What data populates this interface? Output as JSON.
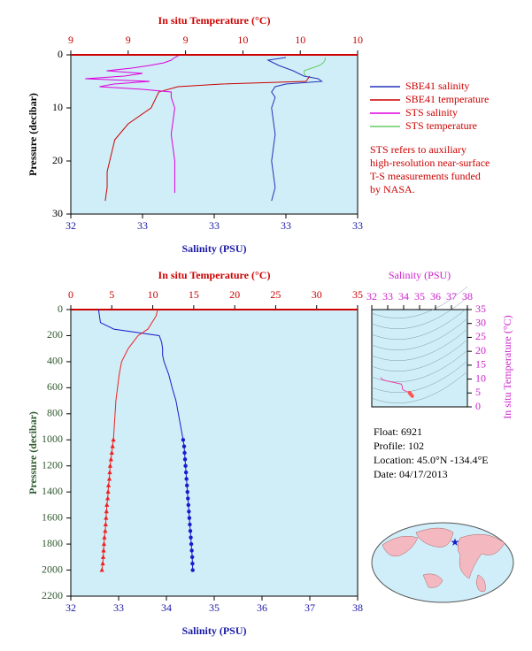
{
  "chart_data": [
    {
      "type": "profile",
      "x_label": "Salinity (PSU)",
      "x2_label": "In situ Temperature (°C)",
      "y_label": "Pressure (decibar)",
      "x_color": "#1a1aa6",
      "x2_color": "#cc0000",
      "y_color": "#000000",
      "background": "#d0eef7",
      "xlim": [
        32.4,
        33.2
      ],
      "xticks": [
        {
          "value": 32.4,
          "label": "32"
        },
        {
          "value": 32.6,
          "label": "33"
        },
        {
          "value": 32.8,
          "label": "33"
        },
        {
          "value": 33.0,
          "label": "33"
        },
        {
          "value": 33.2,
          "label": "33"
        }
      ],
      "x2lim": [
        8.6,
        10.1
      ],
      "x2ticks": [
        {
          "value": 8.6,
          "label": "9"
        },
        {
          "value": 8.9,
          "label": "9"
        },
        {
          "value": 9.2,
          "label": "9"
        },
        {
          "value": 9.5,
          "label": "10"
        },
        {
          "value": 9.8,
          "label": "10"
        },
        {
          "value": 10.1,
          "label": "10"
        }
      ],
      "ylim": [
        0,
        30
      ],
      "yticks": [
        0,
        10,
        20,
        30
      ],
      "y_inverted": true,
      "legend": "right-outside",
      "series": [
        {
          "name": "SBE41 salinity",
          "color": "#2233bb",
          "axis": "x",
          "pressure": [
            0.5,
            1,
            2,
            3,
            4,
            4.5,
            5,
            5.5,
            6,
            7,
            8,
            10,
            15,
            20,
            25,
            27.5
          ],
          "values": [
            33.0,
            32.95,
            32.98,
            33.02,
            33.05,
            33.09,
            33.1,
            33.0,
            32.97,
            32.96,
            32.97,
            32.96,
            32.97,
            32.96,
            32.97,
            32.96
          ]
        },
        {
          "name": "SBE41 temperature",
          "color": "#cc0000",
          "axis": "x2",
          "pressure": [
            4,
            5,
            5.5,
            6,
            7,
            10,
            13,
            16,
            19,
            22,
            25,
            27.5
          ],
          "values": [
            9.85,
            9.83,
            9.39,
            9.16,
            9.06,
            9.02,
            8.9,
            8.83,
            8.81,
            8.79,
            8.79,
            8.78
          ]
        },
        {
          "name": "STS salinity",
          "color": "#dd00dd",
          "axis": "x",
          "pressure": [
            0.2,
            0.5,
            1,
            1.5,
            2,
            2.5,
            3,
            3.5,
            4,
            4.5,
            5,
            5.5,
            6,
            6.5,
            7,
            8,
            10,
            15,
            20,
            25,
            26
          ],
          "values": [
            32.7,
            32.69,
            32.68,
            32.66,
            32.62,
            32.57,
            32.5,
            32.6,
            32.55,
            32.44,
            32.62,
            32.52,
            32.48,
            32.6,
            32.68,
            32.68,
            32.69,
            32.68,
            32.69,
            32.69,
            32.69
          ]
        },
        {
          "name": "STS temperature",
          "color": "#66cc66",
          "axis": "x2",
          "pressure": [
            0.5,
            1,
            1.5,
            2,
            2.5,
            3,
            3.5,
            4
          ],
          "values": [
            9.93,
            9.93,
            9.92,
            9.9,
            9.86,
            9.82,
            9.82,
            9.83
          ]
        }
      ],
      "note": [
        "STS refers to auxiliary",
        "high-resolution near-surface",
        "T-S measurements funded",
        "by NASA."
      ]
    },
    {
      "type": "profile",
      "x_label": "Salinity (PSU)",
      "x2_label": "In situ Temperature (°C)",
      "y_label": "Pressure (decibar)",
      "x_color": "#1a1aa6",
      "x2_color": "#cc0000",
      "y_color": "#2f5a2f",
      "background": "#d0eef7",
      "xlim": [
        32,
        38
      ],
      "xticks": [
        32,
        33,
        34,
        35,
        36,
        37,
        38
      ],
      "x2lim": [
        0,
        35
      ],
      "x2ticks": [
        0,
        5,
        10,
        15,
        20,
        25,
        30,
        35
      ],
      "ylim": [
        0,
        2200
      ],
      "yticks": [
        0,
        200,
        400,
        600,
        800,
        1000,
        1200,
        1400,
        1600,
        1800,
        2000,
        2200
      ],
      "y_inverted": true,
      "series": [
        {
          "color": "#1a1acc",
          "axis": "x",
          "marker": "none",
          "pressure": [
            0,
            50,
            100,
            150,
            200,
            250,
            300,
            350,
            400,
            500,
            600,
            700,
            800,
            900,
            1000
          ],
          "values": [
            32.58,
            32.6,
            32.62,
            32.9,
            33.85,
            33.9,
            33.92,
            33.92,
            33.95,
            34.05,
            34.12,
            34.2,
            34.25,
            34.3,
            34.35
          ]
        },
        {
          "color": "#ee2222",
          "axis": "x2",
          "marker": "none",
          "pressure": [
            0,
            50,
            100,
            150,
            200,
            250,
            300,
            350,
            400,
            500,
            600,
            700,
            800,
            900,
            1000
          ],
          "values": [
            10.6,
            10.4,
            9.9,
            9.4,
            8.2,
            7.6,
            7.0,
            6.6,
            6.2,
            5.9,
            5.7,
            5.5,
            5.4,
            5.3,
            5.2
          ]
        },
        {
          "color": "#1a1acc",
          "axis": "x",
          "marker": "circle",
          "pressure": [
            1000,
            1050,
            1100,
            1150,
            1200,
            1250,
            1300,
            1350,
            1400,
            1450,
            1500,
            1550,
            1600,
            1650,
            1700,
            1750,
            1800,
            1850,
            1900,
            1950,
            2000
          ],
          "values": [
            34.35,
            34.37,
            34.38,
            34.39,
            34.4,
            34.41,
            34.42,
            34.43,
            34.44,
            34.45,
            34.46,
            34.47,
            34.48,
            34.49,
            34.5,
            34.51,
            34.52,
            34.53,
            34.54,
            34.545,
            34.55
          ]
        },
        {
          "color": "#ee2222",
          "axis": "x2",
          "marker": "triangle",
          "pressure": [
            1000,
            1050,
            1100,
            1150,
            1200,
            1250,
            1300,
            1350,
            1400,
            1450,
            1500,
            1550,
            1600,
            1650,
            1700,
            1750,
            1800,
            1850,
            1900,
            1950,
            2000
          ],
          "values": [
            5.2,
            5.1,
            5.0,
            4.9,
            4.8,
            4.75,
            4.7,
            4.6,
            4.55,
            4.5,
            4.4,
            4.35,
            4.3,
            4.25,
            4.2,
            4.1,
            4.05,
            4.0,
            3.95,
            3.9,
            3.8
          ]
        }
      ]
    },
    {
      "type": "ts",
      "x_label": "Salinity (PSU)",
      "y_label": "In situ Temperature (°C)",
      "x_color": "#cc22cc",
      "y_color": "#cc22cc",
      "color": "#ee44aa",
      "marker_color": "#ff5555",
      "background": "#d0eef7",
      "xlim": [
        32,
        38
      ],
      "xticks": [
        32,
        33,
        34,
        35,
        36,
        37,
        38
      ],
      "ylim": [
        0,
        35
      ],
      "yticks": [
        0,
        5,
        10,
        15,
        20,
        25,
        30,
        35
      ]
    }
  ],
  "float_info": [
    "Float:  6921",
    "Profile:  102",
    "Location:  45.0°N  -134.4°E",
    "Date:  04/17/2013"
  ]
}
